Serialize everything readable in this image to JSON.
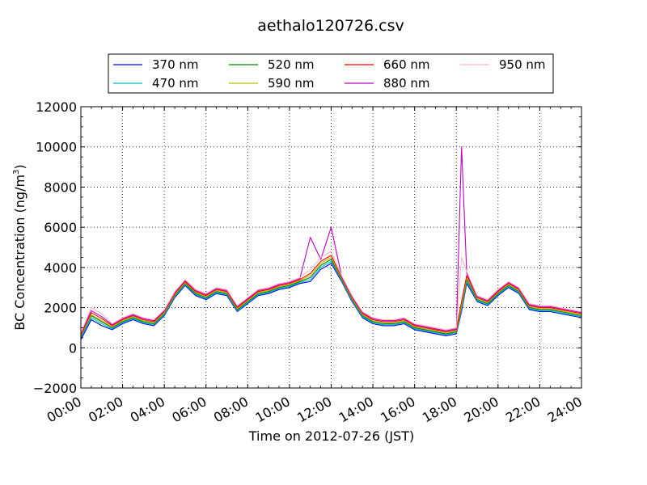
{
  "chart_data": {
    "type": "line",
    "title": "aethalo120726.csv",
    "xlabel": "Time on 2012-07-26 (JST)",
    "ylabel": "BC Concentration (ng/m",
    "ylabel_sup": "3",
    "ylabel_close": ")",
    "xlim": [
      "00:00",
      "24:00"
    ],
    "ylim": [
      -2000,
      12000
    ],
    "x_ticks": [
      "00:00",
      "02:00",
      "04:00",
      "06:00",
      "08:00",
      "10:00",
      "12:00",
      "14:00",
      "16:00",
      "18:00",
      "20:00",
      "22:00",
      "24:00"
    ],
    "y_ticks": [
      "−2000",
      "0",
      "2000",
      "4000",
      "6000",
      "8000",
      "10000",
      "12000"
    ],
    "grid": true,
    "legend_position": "top-center",
    "x": [
      "00:00",
      "00:30",
      "01:00",
      "01:30",
      "02:00",
      "02:30",
      "03:00",
      "03:30",
      "04:00",
      "04:30",
      "05:00",
      "05:30",
      "06:00",
      "06:30",
      "07:00",
      "07:30",
      "08:00",
      "08:30",
      "09:00",
      "09:30",
      "10:00",
      "10:30",
      "11:00",
      "11:30",
      "12:00",
      "12:30",
      "13:00",
      "13:30",
      "14:00",
      "14:30",
      "15:00",
      "15:30",
      "16:00",
      "16:30",
      "17:00",
      "17:30",
      "18:00",
      "18:15",
      "18:30",
      "19:00",
      "19:30",
      "20:00",
      "20:30",
      "21:00",
      "21:30",
      "22:00",
      "22:30",
      "23:00",
      "23:30",
      "24:00"
    ],
    "series": [
      {
        "name": "370 nm",
        "color": "#0000ff",
        "values": [
          400,
          1400,
          1100,
          900,
          1200,
          1400,
          1200,
          1100,
          1600,
          2500,
          3100,
          2600,
          2400,
          2700,
          2600,
          1800,
          2200,
          2600,
          2700,
          2900,
          3000,
          3200,
          3300,
          3900,
          4200,
          3300,
          2300,
          1500,
          1200,
          1100,
          1100,
          1200,
          900,
          800,
          700,
          600,
          700,
          1800,
          3200,
          2300,
          2100,
          2600,
          3000,
          2700,
          1900,
          1800,
          1800,
          1700,
          1600,
          1500
        ]
      },
      {
        "name": "470 nm",
        "color": "#00bfbf",
        "values": [
          500,
          1500,
          1200,
          950,
          1250,
          1450,
          1250,
          1150,
          1650,
          2550,
          3150,
          2650,
          2450,
          2750,
          2650,
          1850,
          2250,
          2650,
          2750,
          2950,
          3050,
          3250,
          3400,
          4000,
          4300,
          3350,
          2350,
          1550,
          1250,
          1150,
          1150,
          1250,
          950,
          850,
          750,
          650,
          750,
          1900,
          3300,
          2350,
          2150,
          2650,
          3050,
          2750,
          1950,
          1850,
          1850,
          1750,
          1650,
          1550
        ]
      },
      {
        "name": "520 nm",
        "color": "#008000",
        "values": [
          550,
          1600,
          1300,
          1000,
          1300,
          1500,
          1300,
          1200,
          1700,
          2600,
          3200,
          2700,
          2500,
          2800,
          2700,
          1900,
          2300,
          2700,
          2800,
          3000,
          3100,
          3300,
          3500,
          4100,
          4400,
          3400,
          2400,
          1600,
          1300,
          1200,
          1200,
          1300,
          1000,
          900,
          800,
          700,
          800,
          2000,
          3400,
          2400,
          2200,
          2700,
          3100,
          2800,
          2000,
          1900,
          1900,
          1800,
          1700,
          1600
        ]
      },
      {
        "name": "590 nm",
        "color": "#bfbf00",
        "values": [
          600,
          1650,
          1350,
          1050,
          1350,
          1550,
          1350,
          1250,
          1750,
          2650,
          3250,
          2750,
          2550,
          2850,
          2750,
          1950,
          2350,
          2750,
          2850,
          3050,
          3150,
          3350,
          3600,
          4200,
          4500,
          3450,
          2450,
          1650,
          1350,
          1250,
          1250,
          1350,
          1050,
          950,
          850,
          750,
          850,
          2100,
          3500,
          2450,
          2250,
          2750,
          3150,
          2850,
          2050,
          1950,
          1950,
          1850,
          1750,
          1650
        ]
      },
      {
        "name": "660 nm",
        "color": "#ff0000",
        "values": [
          650,
          1750,
          1450,
          1100,
          1400,
          1600,
          1400,
          1300,
          1800,
          2700,
          3300,
          2800,
          2600,
          2900,
          2800,
          2000,
          2400,
          2800,
          2900,
          3100,
          3200,
          3400,
          3700,
          4300,
          4600,
          3500,
          2500,
          1700,
          1400,
          1300,
          1300,
          1400,
          1100,
          1000,
          900,
          800,
          900,
          2300,
          3600,
          2500,
          2300,
          2800,
          3200,
          2900,
          2100,
          2000,
          2000,
          1900,
          1800,
          1700
        ]
      },
      {
        "name": "880 nm",
        "color": "#bf00bf",
        "values": [
          700,
          1850,
          1550,
          1150,
          1450,
          1650,
          1450,
          1350,
          1850,
          2750,
          3350,
          2850,
          2650,
          2950,
          2850,
          2050,
          2450,
          2850,
          2950,
          3150,
          3250,
          3450,
          5500,
          4400,
          6000,
          3550,
          2550,
          1750,
          1450,
          1350,
          1350,
          1450,
          1150,
          1050,
          950,
          850,
          950,
          10000,
          3700,
          2550,
          2350,
          2850,
          3250,
          2950,
          2150,
          2050,
          2050,
          1950,
          1850,
          1750
        ]
      },
      {
        "name": "950 nm",
        "color": "#ffb6c1",
        "values": [
          750,
          2000,
          1700,
          1200,
          1500,
          1700,
          1500,
          1400,
          1900,
          2800,
          3400,
          2900,
          2700,
          3000,
          2900,
          2100,
          2500,
          2900,
          3000,
          3200,
          3300,
          3500,
          3900,
          4500,
          4800,
          3600,
          2600,
          1800,
          1500,
          1400,
          1400,
          1500,
          1200,
          1100,
          1000,
          900,
          1000,
          4500,
          3800,
          2600,
          2400,
          2900,
          3300,
          3000,
          2200,
          2100,
          2100,
          2000,
          1900,
          1800
        ]
      }
    ]
  }
}
